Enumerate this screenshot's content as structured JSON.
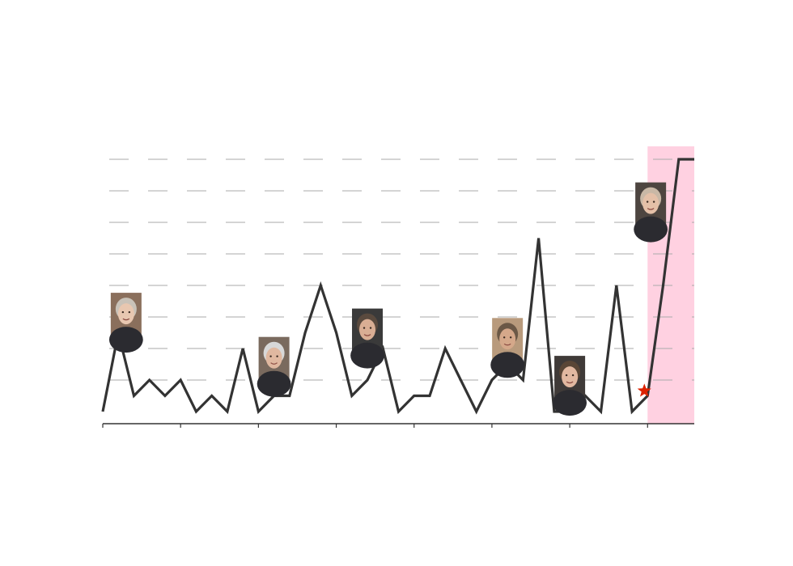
{
  "chart_data": {
    "type": "line",
    "title": "",
    "xlabel": "",
    "ylabel": "",
    "grid": true,
    "grid_style": "dashed horizontal",
    "ylim": [
      0,
      8
    ],
    "yticks": [
      1,
      2,
      3,
      4,
      5,
      6,
      7,
      8
    ],
    "x_ticks_count": 8,
    "series": [
      {
        "values": [
          0,
          2.5,
          0.5,
          1,
          0.5,
          1,
          0,
          0.5,
          0,
          2,
          0,
          0.5,
          0.5,
          2.5,
          4,
          2.5,
          0.5,
          1,
          2,
          0,
          0.5,
          0.5,
          2,
          1,
          0,
          1,
          1.5,
          1,
          5.5,
          0,
          0,
          0.5,
          0,
          4,
          0,
          0.5,
          4,
          8,
          8
        ],
        "color": "#333333"
      }
    ],
    "highlight_region": {
      "x_start": 35,
      "x_end": 38,
      "color": "#ffd1e1"
    },
    "marker": {
      "x": 35,
      "y": 0.35,
      "shape": "star",
      "color": "#dd2200"
    },
    "portraits": [
      {
        "name": "thatcher-portrait",
        "x": 1.5,
        "y": 3.1,
        "hair": "#c9c2b8",
        "skin": "#e8c7b0",
        "bg": "#8a6f5c"
      },
      {
        "name": "major-portrait",
        "x": 11,
        "y": 1.7,
        "hair": "#d8d8d8",
        "skin": "#e0b8a0",
        "bg": "#7a6a5e"
      },
      {
        "name": "blair-portrait",
        "x": 17,
        "y": 2.6,
        "hair": "#5a4a3e",
        "skin": "#d9ae94",
        "bg": "#3a3a3a"
      },
      {
        "name": "brown-portrait",
        "x": 26,
        "y": 2.3,
        "hair": "#6b5846",
        "skin": "#d5a88a",
        "bg": "#b89a7c"
      },
      {
        "name": "cameron-portrait",
        "x": 30,
        "y": 1.1,
        "hair": "#5a4636",
        "skin": "#e2b8a0",
        "bg": "#3f3a38"
      },
      {
        "name": "may-portrait",
        "x": 35.2,
        "y": 6.6,
        "hair": "#c9b8a6",
        "skin": "#e4c0a8",
        "bg": "#4d4540"
      }
    ],
    "colors": {
      "line": "#333333",
      "grid": "#aaaaaa",
      "axis": "#333333",
      "highlight": "#ffd1e1",
      "marker": "#dd2200"
    }
  }
}
